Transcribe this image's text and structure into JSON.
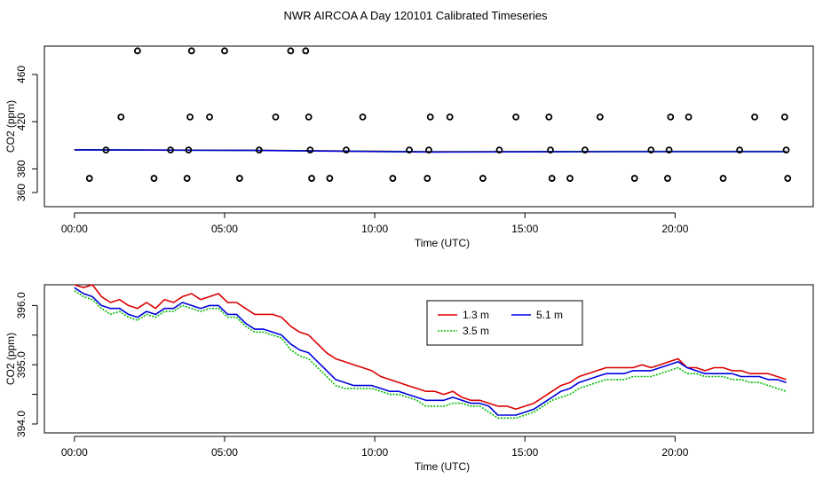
{
  "title": "NWR AIRCOA A  Day 120101  Calibrated Timeseries",
  "chart_data": [
    {
      "type": "scatter+line",
      "xlabel": "Time (UTC)",
      "ylabel": "CO2 (ppm)",
      "xlim": [
        -1.0,
        24.6
      ],
      "ylim": [
        348,
        484
      ],
      "xticks": [
        0,
        5,
        10,
        15,
        20
      ],
      "xtick_labels": [
        "00:00",
        "05:00",
        "10:00",
        "15:00",
        "20:00"
      ],
      "yticks": [
        360,
        380,
        420,
        460
      ],
      "ytick_labels": [
        "360",
        "380",
        "420",
        "460"
      ],
      "points": {
        "name": "calibration points",
        "x": [
          0.5,
          1.05,
          1.55,
          2.1,
          2.65,
          3.2,
          3.75,
          3.8,
          3.85,
          3.9,
          4.5,
          5.0,
          5.5,
          6.15,
          6.7,
          7.2,
          7.7,
          7.8,
          7.85,
          7.9,
          8.5,
          9.05,
          9.6,
          10.6,
          11.15,
          11.75,
          11.8,
          11.85,
          12.5,
          13.6,
          14.15,
          14.7,
          15.8,
          15.85,
          15.9,
          16.5,
          17.0,
          17.5,
          18.65,
          19.2,
          19.75,
          19.8,
          19.85,
          20.45,
          21.6,
          22.15,
          22.65,
          23.65,
          23.7,
          23.75
        ],
        "y": [
          372,
          396,
          424,
          480,
          372,
          396,
          372,
          396,
          424,
          480,
          424,
          480,
          372,
          396,
          424,
          480,
          480,
          424,
          396,
          372,
          372,
          396,
          424,
          372,
          396,
          372,
          396,
          424,
          424,
          372,
          396,
          424,
          424,
          396,
          372,
          372,
          396,
          424,
          372,
          396,
          372,
          396,
          424,
          424,
          372,
          396,
          424,
          424,
          396,
          372
        ]
      },
      "series": [
        {
          "name": "1.3 m",
          "color": "#dd0000",
          "x": [
            0,
            6,
            12,
            18,
            23.7
          ],
          "y": [
            396.2,
            395.8,
            394.5,
            394.8,
            394.8
          ]
        },
        {
          "name": "3.5 m",
          "color": "#00bb00",
          "x": [
            0,
            6,
            12,
            18,
            23.7
          ],
          "y": [
            396.2,
            395.7,
            394.4,
            394.7,
            394.7
          ]
        },
        {
          "name": "5.1 m",
          "color": "#0000dd",
          "x": [
            0,
            6,
            12,
            18,
            23.7
          ],
          "y": [
            396.2,
            395.6,
            394.3,
            394.6,
            394.6
          ]
        }
      ]
    },
    {
      "type": "line",
      "xlabel": "Time (UTC)",
      "ylabel": "CO2 (ppm)",
      "xlim": [
        -1.0,
        24.6
      ],
      "ylim": [
        393.85,
        396.35
      ],
      "xticks": [
        0,
        5,
        10,
        15,
        20
      ],
      "xtick_labels": [
        "00:00",
        "05:00",
        "10:00",
        "15:00",
        "20:00"
      ],
      "yticks": [
        394.0,
        394.5,
        395.0,
        395.5,
        396.0
      ],
      "ytick_labels": [
        "394.0",
        "",
        "395.0",
        "",
        "396.0"
      ],
      "legend": {
        "position": "top-center",
        "entries": [
          "1.3 m",
          "5.1 m",
          "3.5 m"
        ]
      },
      "series": [
        {
          "name": "1.3 m",
          "color": "#dd0000",
          "dash": "",
          "x": [
            0.0,
            0.3,
            0.6,
            0.9,
            1.2,
            1.5,
            1.8,
            2.1,
            2.4,
            2.7,
            3.0,
            3.3,
            3.6,
            3.9,
            4.2,
            4.5,
            4.8,
            5.1,
            5.4,
            5.7,
            6.0,
            6.3,
            6.6,
            6.9,
            7.2,
            7.5,
            7.8,
            8.1,
            8.4,
            8.7,
            9.0,
            9.3,
            9.6,
            9.9,
            10.2,
            10.5,
            10.8,
            11.1,
            11.4,
            11.7,
            12.0,
            12.3,
            12.6,
            12.9,
            13.2,
            13.5,
            13.8,
            14.1,
            14.4,
            14.7,
            15.0,
            15.3,
            15.6,
            15.9,
            16.2,
            16.5,
            16.8,
            17.1,
            17.4,
            17.7,
            18.0,
            18.3,
            18.6,
            18.9,
            19.2,
            19.5,
            19.8,
            20.1,
            20.4,
            20.7,
            21.0,
            21.3,
            21.6,
            21.9,
            22.2,
            22.5,
            22.8,
            23.1,
            23.4,
            23.7
          ],
          "y": [
            396.35,
            396.3,
            396.35,
            396.15,
            396.05,
            396.1,
            396.0,
            395.95,
            396.05,
            395.95,
            396.1,
            396.05,
            396.15,
            396.2,
            396.1,
            396.15,
            396.2,
            396.05,
            396.05,
            395.95,
            395.85,
            395.85,
            395.85,
            395.8,
            395.65,
            395.55,
            395.5,
            395.35,
            395.2,
            395.1,
            395.05,
            395.0,
            394.95,
            394.9,
            394.8,
            394.75,
            394.7,
            394.65,
            394.6,
            394.55,
            394.55,
            394.5,
            394.55,
            394.45,
            394.4,
            394.4,
            394.35,
            394.3,
            394.3,
            394.25,
            394.3,
            394.35,
            394.45,
            394.55,
            394.65,
            394.7,
            394.8,
            394.85,
            394.9,
            394.95,
            394.95,
            394.95,
            394.95,
            395.0,
            394.95,
            395.0,
            395.05,
            395.1,
            394.95,
            394.95,
            394.9,
            394.95,
            394.95,
            394.9,
            394.9,
            394.85,
            394.85,
            394.85,
            394.8,
            394.75
          ]
        },
        {
          "name": "5.1 m",
          "color": "#0000dd",
          "dash": "",
          "x": [
            0.0,
            0.3,
            0.6,
            0.9,
            1.2,
            1.5,
            1.8,
            2.1,
            2.4,
            2.7,
            3.0,
            3.3,
            3.6,
            3.9,
            4.2,
            4.5,
            4.8,
            5.1,
            5.4,
            5.7,
            6.0,
            6.3,
            6.6,
            6.9,
            7.2,
            7.5,
            7.8,
            8.1,
            8.4,
            8.7,
            9.0,
            9.3,
            9.6,
            9.9,
            10.2,
            10.5,
            10.8,
            11.1,
            11.4,
            11.7,
            12.0,
            12.3,
            12.6,
            12.9,
            13.2,
            13.5,
            13.8,
            14.1,
            14.4,
            14.7,
            15.0,
            15.3,
            15.6,
            15.9,
            16.2,
            16.5,
            16.8,
            17.1,
            17.4,
            17.7,
            18.0,
            18.3,
            18.6,
            18.9,
            19.2,
            19.5,
            19.8,
            20.1,
            20.4,
            20.7,
            21.0,
            21.3,
            21.6,
            21.9,
            22.2,
            22.5,
            22.8,
            23.1,
            23.4,
            23.7
          ],
          "y": [
            396.3,
            396.2,
            396.15,
            396.0,
            395.95,
            395.95,
            395.85,
            395.8,
            395.9,
            395.85,
            395.95,
            395.95,
            396.05,
            396.0,
            395.95,
            396.0,
            396.0,
            395.85,
            395.85,
            395.7,
            395.6,
            395.6,
            395.55,
            395.5,
            395.35,
            395.25,
            395.2,
            395.05,
            394.9,
            394.75,
            394.7,
            394.65,
            394.65,
            394.65,
            394.6,
            394.55,
            394.55,
            394.5,
            394.45,
            394.4,
            394.4,
            394.4,
            394.45,
            394.4,
            394.35,
            394.35,
            394.3,
            394.15,
            394.15,
            394.15,
            394.2,
            394.25,
            394.35,
            394.45,
            394.55,
            394.6,
            394.7,
            394.75,
            394.8,
            394.85,
            394.85,
            394.85,
            394.9,
            394.9,
            394.9,
            394.95,
            395.0,
            395.05,
            394.95,
            394.9,
            394.85,
            394.85,
            394.85,
            394.85,
            394.8,
            394.8,
            394.8,
            394.75,
            394.75,
            394.7
          ]
        },
        {
          "name": "3.5 m",
          "color": "#00bb00",
          "dash": "2,1.5",
          "x": [
            0.0,
            0.3,
            0.6,
            0.9,
            1.2,
            1.5,
            1.8,
            2.1,
            2.4,
            2.7,
            3.0,
            3.3,
            3.6,
            3.9,
            4.2,
            4.5,
            4.8,
            5.1,
            5.4,
            5.7,
            6.0,
            6.3,
            6.6,
            6.9,
            7.2,
            7.5,
            7.8,
            8.1,
            8.4,
            8.7,
            9.0,
            9.3,
            9.6,
            9.9,
            10.2,
            10.5,
            10.8,
            11.1,
            11.4,
            11.7,
            12.0,
            12.3,
            12.6,
            12.9,
            13.2,
            13.5,
            13.8,
            14.1,
            14.4,
            14.7,
            15.0,
            15.3,
            15.6,
            15.9,
            16.2,
            16.5,
            16.8,
            17.1,
            17.4,
            17.7,
            18.0,
            18.3,
            18.6,
            18.9,
            19.2,
            19.5,
            19.8,
            20.1,
            20.4,
            20.7,
            21.0,
            21.3,
            21.6,
            21.9,
            22.2,
            22.5,
            22.8,
            23.1,
            23.4,
            23.7
          ],
          "y": [
            396.25,
            396.15,
            396.1,
            395.95,
            395.85,
            395.9,
            395.8,
            395.75,
            395.85,
            395.8,
            395.9,
            395.9,
            396.0,
            395.95,
            395.9,
            395.95,
            395.95,
            395.8,
            395.8,
            395.65,
            395.55,
            395.55,
            395.5,
            395.45,
            395.25,
            395.15,
            395.1,
            394.95,
            394.8,
            394.65,
            394.6,
            394.6,
            394.6,
            394.6,
            394.55,
            394.5,
            394.5,
            394.45,
            394.4,
            394.3,
            394.3,
            394.3,
            394.35,
            394.35,
            394.3,
            394.3,
            394.2,
            394.1,
            394.1,
            394.1,
            394.15,
            394.2,
            394.3,
            394.4,
            394.45,
            394.5,
            394.6,
            394.65,
            394.7,
            394.75,
            394.75,
            394.75,
            394.8,
            394.8,
            394.8,
            394.85,
            394.9,
            394.95,
            394.85,
            394.85,
            394.8,
            394.8,
            394.8,
            394.75,
            394.75,
            394.7,
            394.7,
            394.65,
            394.6,
            394.55
          ]
        }
      ]
    }
  ]
}
